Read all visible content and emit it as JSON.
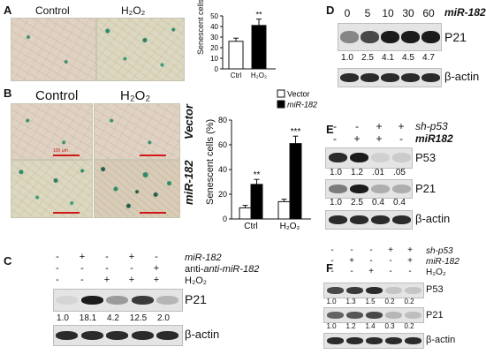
{
  "panels": {
    "A": {
      "letter": "A",
      "image_labels": [
        "Control",
        "H₂O₂"
      ],
      "chart_data": {
        "type": "bar",
        "categories": [
          "Ctrl",
          "H₂O₂"
        ],
        "values": [
          26,
          41
        ],
        "errors": [
          3,
          6
        ],
        "ylabel": "Senescent cells (%)",
        "yticks": [
          "0",
          "10",
          "20",
          "30",
          "40",
          "50"
        ],
        "ylim": [
          0,
          50
        ],
        "annotations": [
          "**"
        ],
        "bar_colors": [
          "#ffffff",
          "#000000"
        ]
      }
    },
    "B": {
      "letter": "B",
      "image_labels": [
        "Control",
        "H₂O₂"
      ],
      "row_labels": [
        "Vector",
        "miR-182"
      ],
      "scale_text": "100 μm",
      "chart_data": {
        "type": "bar",
        "categories": [
          "Ctrl",
          "H₂O₂"
        ],
        "series": [
          {
            "name": "Vector",
            "values": [
              9,
              14
            ],
            "errors": [
              2,
              2
            ],
            "color": "#ffffff"
          },
          {
            "name": "miR-182",
            "values": [
              28,
              61
            ],
            "errors": [
              4,
              6
            ],
            "color": "#000000"
          }
        ],
        "ylabel": "Senescent cells (%)",
        "yticks": [
          "0",
          "20",
          "40",
          "60",
          "80"
        ],
        "ylim": [
          0,
          80
        ],
        "annotations": [
          "**",
          "***"
        ]
      }
    },
    "C": {
      "letter": "C",
      "row_names": [
        "miR-182",
        "anti-miR-182",
        "H₂O₂"
      ],
      "signs": [
        [
          "-",
          "+",
          "-",
          "+",
          "-"
        ],
        [
          "-",
          "-",
          "-",
          "-",
          "+"
        ],
        [
          "-",
          "-",
          "+",
          "+",
          "+"
        ]
      ],
      "p21_label": "P21",
      "p21_values": [
        "1.0",
        "18.1",
        "4.2",
        "12.5",
        "2.0"
      ],
      "p21_intensity": [
        0.05,
        0.95,
        0.45,
        0.85,
        0.3
      ],
      "actin_label": "β-actin"
    },
    "D": {
      "letter": "D",
      "timepoints": [
        "0",
        "5",
        "10",
        "30",
        "60"
      ],
      "row_name": "miR-182",
      "p21_label": "P21",
      "p21_values": [
        "1.0",
        "2.5",
        "4.1",
        "4.5",
        "4.7"
      ],
      "p21_intensity": [
        0.55,
        0.8,
        0.95,
        0.95,
        0.95
      ],
      "actin_label": "β-actin"
    },
    "E": {
      "letter": "E",
      "row_names": [
        "sh-p53",
        "miR182"
      ],
      "signs": [
        [
          "-",
          "-",
          "+",
          "+"
        ],
        [
          "-",
          "+",
          "+",
          "-"
        ]
      ],
      "p53_label": "P53",
      "p53_values": [
        "1.0",
        "1.2",
        ".01",
        ".05"
      ],
      "p53_intensity": [
        0.9,
        0.95,
        0.1,
        0.15
      ],
      "p21_label": "P21",
      "p21_values": [
        "1.0",
        "2.5",
        "0.4",
        "0.4"
      ],
      "p21_intensity": [
        0.6,
        0.95,
        0.35,
        0.35
      ],
      "actin_label": "β-actin"
    },
    "F": {
      "letter": "F",
      "row_names": [
        "sh-p53",
        "miR-182",
        "H₂O₂"
      ],
      "signs": [
        [
          "-",
          "-",
          "-",
          "+",
          "+"
        ],
        [
          "-",
          "+",
          "-",
          "-",
          "+"
        ],
        [
          "-",
          "-",
          "+",
          "-",
          "-"
        ]
      ],
      "p53_label": "P53",
      "p53_values": [
        "1.0",
        "1.3",
        "1.5",
        "0.2",
        "0.2"
      ],
      "p53_intensity": [
        0.8,
        0.85,
        0.9,
        0.2,
        0.2
      ],
      "p21_label": "P21",
      "p21_values": [
        "1.0",
        "1.2",
        "1.4",
        "0.3",
        "0.2"
      ],
      "p21_intensity": [
        0.7,
        0.75,
        0.8,
        0.3,
        0.25
      ],
      "actin_label": "β-actin"
    }
  }
}
